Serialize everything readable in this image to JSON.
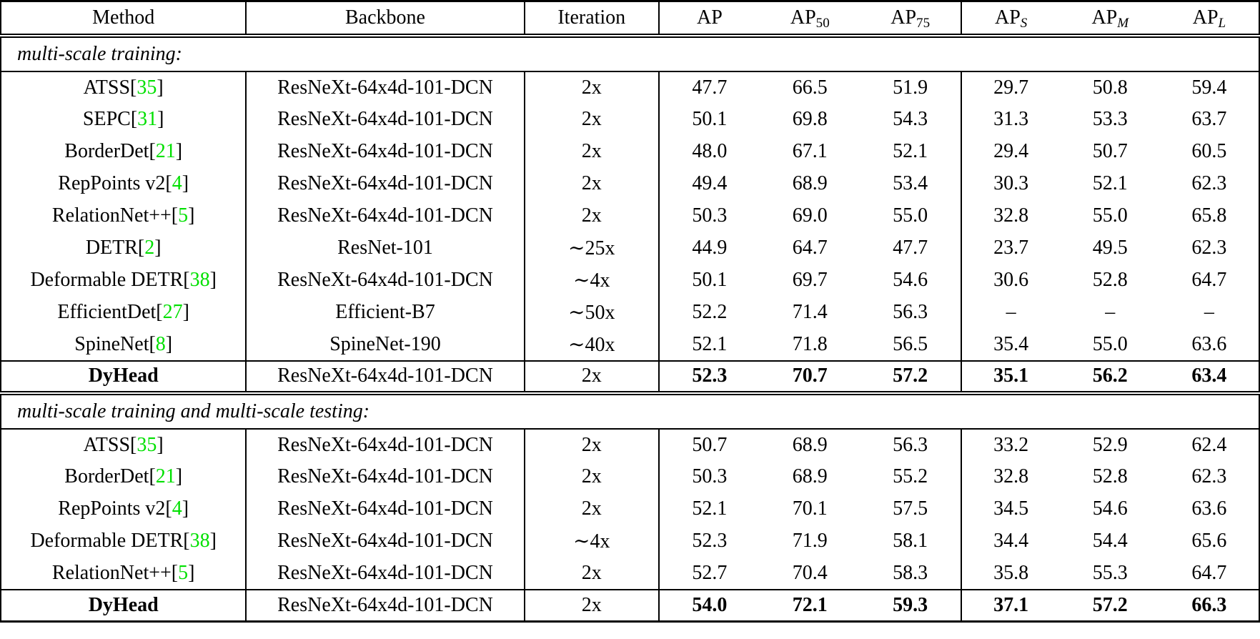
{
  "table": {
    "cite_color": "#00e000",
    "columns": [
      {
        "label": "Method"
      },
      {
        "label": "Backbone"
      },
      {
        "label": "Iteration"
      },
      {
        "label": "AP",
        "sub": ""
      },
      {
        "label": "AP",
        "sub": "50"
      },
      {
        "label": "AP",
        "sub": "75"
      },
      {
        "label": "AP",
        "sub": "S"
      },
      {
        "label": "AP",
        "sub": "M"
      },
      {
        "label": "AP",
        "sub": "L"
      }
    ],
    "sections": [
      {
        "header": "multi-scale training:",
        "rows": [
          {
            "method": "ATSS",
            "cite": "35",
            "backbone": "ResNeXt-64x4d-101-DCN",
            "iteration": "2x",
            "ap": "47.7",
            "ap50": "66.5",
            "ap75": "51.9",
            "aps": "29.7",
            "apm": "50.8",
            "apl": "59.4",
            "bold": false
          },
          {
            "method": "SEPC",
            "cite": "31",
            "backbone": "ResNeXt-64x4d-101-DCN",
            "iteration": "2x",
            "ap": "50.1",
            "ap50": "69.8",
            "ap75": "54.3",
            "aps": "31.3",
            "apm": "53.3",
            "apl": "63.7",
            "bold": false
          },
          {
            "method": "BorderDet",
            "cite": "21",
            "backbone": "ResNeXt-64x4d-101-DCN",
            "iteration": "2x",
            "ap": "48.0",
            "ap50": "67.1",
            "ap75": "52.1",
            "aps": "29.4",
            "apm": "50.7",
            "apl": "60.5",
            "bold": false
          },
          {
            "method": "RepPoints v2",
            "cite": "4",
            "backbone": "ResNeXt-64x4d-101-DCN",
            "iteration": "2x",
            "ap": "49.4",
            "ap50": "68.9",
            "ap75": "53.4",
            "aps": "30.3",
            "apm": "52.1",
            "apl": "62.3",
            "bold": false
          },
          {
            "method": "RelationNet++",
            "cite": "5",
            "backbone": "ResNeXt-64x4d-101-DCN",
            "iteration": "2x",
            "ap": "50.3",
            "ap50": "69.0",
            "ap75": "55.0",
            "aps": "32.8",
            "apm": "55.0",
            "apl": "65.8",
            "bold": false
          },
          {
            "method": "DETR",
            "cite": "2",
            "backbone": "ResNet-101",
            "iteration": "∼25x",
            "ap": "44.9",
            "ap50": "64.7",
            "ap75": "47.7",
            "aps": "23.7",
            "apm": "49.5",
            "apl": "62.3",
            "bold": false
          },
          {
            "method": "Deformable DETR",
            "cite": "38",
            "backbone": "ResNeXt-64x4d-101-DCN",
            "iteration": "∼4x",
            "ap": "50.1",
            "ap50": "69.7",
            "ap75": "54.6",
            "aps": "30.6",
            "apm": "52.8",
            "apl": "64.7",
            "bold": false
          },
          {
            "method": "EfficientDet",
            "cite": "27",
            "backbone": "Efficient-B7",
            "iteration": "∼50x",
            "ap": "52.2",
            "ap50": "71.4",
            "ap75": "56.3",
            "aps": "–",
            "apm": "–",
            "apl": "–",
            "bold": false
          },
          {
            "method": "SpineNet",
            "cite": "8",
            "backbone": "SpineNet-190",
            "iteration": "∼40x",
            "ap": "52.1",
            "ap50": "71.8",
            "ap75": "56.5",
            "aps": "35.4",
            "apm": "55.0",
            "apl": "63.6",
            "bold": false
          },
          {
            "method": "DyHead",
            "cite": "",
            "backbone": "ResNeXt-64x4d-101-DCN",
            "iteration": "2x",
            "ap": "52.3",
            "ap50": "70.7",
            "ap75": "57.2",
            "aps": "35.1",
            "apm": "56.2",
            "apl": "63.4",
            "bold": true
          }
        ]
      },
      {
        "header": "multi-scale training and multi-scale testing:",
        "rows": [
          {
            "method": "ATSS",
            "cite": "35",
            "backbone": "ResNeXt-64x4d-101-DCN",
            "iteration": "2x",
            "ap": "50.7",
            "ap50": "68.9",
            "ap75": "56.3",
            "aps": "33.2",
            "apm": "52.9",
            "apl": "62.4",
            "bold": false
          },
          {
            "method": "BorderDet",
            "cite": "21",
            "backbone": "ResNeXt-64x4d-101-DCN",
            "iteration": "2x",
            "ap": "50.3",
            "ap50": "68.9",
            "ap75": "55.2",
            "aps": "32.8",
            "apm": "52.8",
            "apl": "62.3",
            "bold": false
          },
          {
            "method": "RepPoints v2",
            "cite": "4",
            "backbone": "ResNeXt-64x4d-101-DCN",
            "iteration": "2x",
            "ap": "52.1",
            "ap50": "70.1",
            "ap75": "57.5",
            "aps": "34.5",
            "apm": "54.6",
            "apl": "63.6",
            "bold": false
          },
          {
            "method": "Deformable DETR",
            "cite": "38",
            "backbone": "ResNeXt-64x4d-101-DCN",
            "iteration": "∼4x",
            "ap": "52.3",
            "ap50": "71.9",
            "ap75": "58.1",
            "aps": "34.4",
            "apm": "54.4",
            "apl": "65.6",
            "bold": false
          },
          {
            "method": "RelationNet++",
            "cite": "5",
            "backbone": "ResNeXt-64x4d-101-DCN",
            "iteration": "2x",
            "ap": "52.7",
            "ap50": "70.4",
            "ap75": "58.3",
            "aps": "35.8",
            "apm": "55.3",
            "apl": "64.7",
            "bold": false
          },
          {
            "method": "DyHead",
            "cite": "",
            "backbone": "ResNeXt-64x4d-101-DCN",
            "iteration": "2x",
            "ap": "54.0",
            "ap50": "72.1",
            "ap75": "59.3",
            "aps": "37.1",
            "apm": "57.2",
            "apl": "66.3",
            "bold": true
          }
        ]
      }
    ]
  }
}
